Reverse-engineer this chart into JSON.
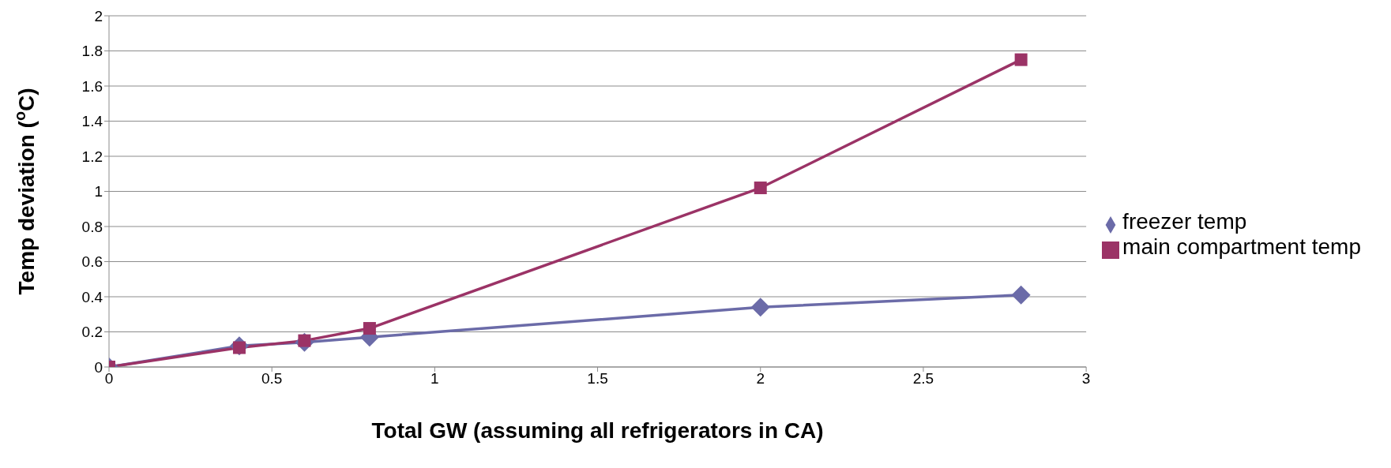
{
  "chart_data": {
    "type": "line",
    "xlabel": "Total GW (assuming all refrigerators in CA)",
    "ylabel": "Temp deviation ($^{o}$C)",
    "x": [
      0,
      0.4,
      0.6,
      0.8,
      2,
      2.8
    ],
    "series": [
      {
        "name": "freezer temp",
        "color": "#6b6ba8",
        "marker": "diamond",
        "values": [
          0,
          0.12,
          0.14,
          0.17,
          0.34,
          0.41
        ]
      },
      {
        "name": "main compartment temp",
        "color": "#9b3366",
        "marker": "square",
        "values": [
          0,
          0.11,
          0.15,
          0.22,
          1.02,
          1.75
        ]
      }
    ],
    "xlim": [
      0,
      3
    ],
    "xticks": [
      0,
      0.5,
      1,
      1.5,
      2,
      2.5,
      3
    ],
    "ylim": [
      0,
      2
    ],
    "yticks": [
      0,
      0.2,
      0.4,
      0.6,
      0.8,
      1,
      1.2,
      1.4,
      1.6,
      1.8,
      2
    ],
    "grid": "y",
    "legend": "right",
    "line_style": "solid"
  }
}
